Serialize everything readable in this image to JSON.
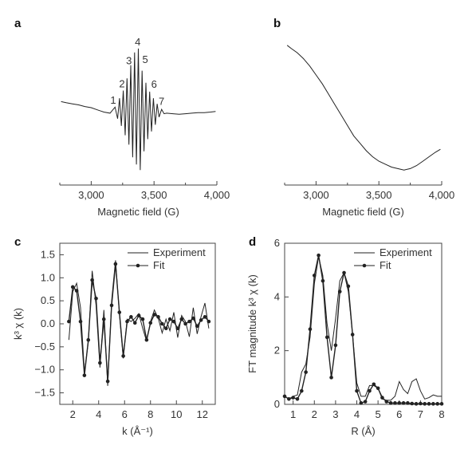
{
  "chart_data": [
    {
      "panel": "a",
      "type": "line",
      "xlabel": "Magnetic field (G)",
      "ylabel": "",
      "xlim": [
        2750,
        4000
      ],
      "xticks": [
        "3,000",
        "3,500",
        "4,000"
      ],
      "xtick_values": [
        3000,
        3500,
        4000
      ],
      "peak_labels": [
        {
          "text": "1",
          "x": 3175,
          "y": 0.12
        },
        {
          "text": "2",
          "x": 3245,
          "y": 0.42
        },
        {
          "text": "3",
          "x": 3300,
          "y": 0.84
        },
        {
          "text": "4",
          "x": 3370,
          "y": 1.18
        },
        {
          "text": "5",
          "x": 3430,
          "y": 0.86
        },
        {
          "text": "6",
          "x": 3500,
          "y": 0.41
        },
        {
          "text": "7",
          "x": 3560,
          "y": 0.1
        }
      ],
      "series": [
        {
          "style": "line",
          "x": [
            2760,
            2800,
            2850,
            2900,
            2950,
            3000,
            3050,
            3100,
            3150,
            3190,
            3210,
            3225,
            3240,
            3255,
            3270,
            3285,
            3300,
            3315,
            3330,
            3345,
            3360,
            3375,
            3390,
            3405,
            3420,
            3435,
            3450,
            3465,
            3480,
            3495,
            3510,
            3525,
            3540,
            3560,
            3580,
            3600,
            3650,
            3700,
            3750,
            3800,
            3850,
            3900,
            3950,
            3990
          ],
          "y": [
            0.16,
            0.14,
            0.12,
            0.1,
            0.07,
            0.05,
            0.01,
            -0.03,
            -0.05,
            0.06,
            -0.15,
            0.22,
            -0.28,
            0.36,
            -0.45,
            0.58,
            -0.62,
            0.82,
            -0.85,
            1.05,
            -0.98,
            1.12,
            -1.08,
            0.72,
            -0.74,
            0.5,
            -0.52,
            0.34,
            -0.38,
            0.22,
            -0.26,
            0.12,
            -0.12,
            0.02,
            -0.06,
            -0.05,
            -0.06,
            -0.07,
            -0.06,
            -0.05,
            -0.04,
            -0.04,
            -0.03,
            -0.02
          ]
        }
      ]
    },
    {
      "panel": "b",
      "type": "line",
      "xlabel": "Magnetic field (G)",
      "ylabel": "",
      "xlim": [
        2750,
        4000
      ],
      "xticks": [
        "3,000",
        "3,500",
        "4,000"
      ],
      "xtick_values": [
        3000,
        3500,
        4000
      ],
      "series": [
        {
          "style": "line",
          "x": [
            2770,
            2800,
            2850,
            2900,
            2950,
            3000,
            3050,
            3100,
            3150,
            3200,
            3250,
            3300,
            3350,
            3400,
            3450,
            3500,
            3550,
            3600,
            3650,
            3700,
            3750,
            3800,
            3850,
            3900,
            3950,
            3990
          ],
          "y": [
            0.45,
            0.43,
            0.4,
            0.36,
            0.31,
            0.25,
            0.19,
            0.12,
            0.05,
            -0.02,
            -0.09,
            -0.16,
            -0.21,
            -0.26,
            -0.3,
            -0.33,
            -0.35,
            -0.37,
            -0.38,
            -0.39,
            -0.38,
            -0.36,
            -0.33,
            -0.3,
            -0.27,
            -0.25
          ]
        }
      ]
    },
    {
      "panel": "c",
      "type": "line",
      "xlabel": "k (Å⁻¹)",
      "ylabel": "k³ χ (k)",
      "xlim": [
        1,
        13
      ],
      "ylim": [
        -1.75,
        1.75
      ],
      "xticks": [
        "2",
        "4",
        "6",
        "8",
        "10",
        "12"
      ],
      "xtick_values": [
        2,
        4,
        6,
        8,
        10,
        12
      ],
      "yticks": [
        "1.5",
        "1.0",
        "0.5",
        "0.0",
        "−0.5",
        "−1.0",
        "−1.5"
      ],
      "ytick_values": [
        1.5,
        1.0,
        0.5,
        0.0,
        -0.5,
        -1.0,
        -1.5
      ],
      "legend": [
        "Experiment",
        "Fit"
      ],
      "legend_position": "top-right",
      "series": [
        {
          "name": "Experiment",
          "style": "line",
          "x": [
            1.7,
            2.0,
            2.3,
            2.6,
            2.9,
            3.2,
            3.5,
            3.8,
            4.1,
            4.4,
            4.7,
            5.0,
            5.3,
            5.6,
            5.9,
            6.2,
            6.5,
            6.8,
            7.1,
            7.4,
            7.7,
            8.0,
            8.3,
            8.6,
            8.9,
            9.2,
            9.5,
            9.8,
            10.1,
            10.4,
            10.7,
            11.0,
            11.3,
            11.6,
            11.9,
            12.2,
            12.5
          ],
          "y": [
            -0.35,
            0.7,
            0.88,
            0.35,
            -1.05,
            -0.4,
            1.15,
            0.4,
            -0.95,
            0.3,
            -1.35,
            0.5,
            1.38,
            0.2,
            -0.75,
            0.1,
            0.05,
            0.12,
            0.22,
            -0.1,
            -0.38,
            0.05,
            0.3,
            0.12,
            -0.2,
            0.1,
            -0.15,
            0.25,
            -0.3,
            0.18,
            0.05,
            -0.28,
            0.35,
            -0.22,
            0.15,
            0.45,
            -0.1
          ]
        },
        {
          "name": "Fit",
          "style": "line-markers",
          "x": [
            1.7,
            2.0,
            2.3,
            2.6,
            2.9,
            3.2,
            3.5,
            3.8,
            4.1,
            4.4,
            4.7,
            5.0,
            5.3,
            5.6,
            5.9,
            6.2,
            6.5,
            6.8,
            7.1,
            7.4,
            7.7,
            8.0,
            8.3,
            8.6,
            8.9,
            9.2,
            9.5,
            9.8,
            10.1,
            10.4,
            10.7,
            11.0,
            11.3,
            11.6,
            11.9,
            12.2,
            12.5
          ],
          "y": [
            0.05,
            0.8,
            0.72,
            0.05,
            -1.12,
            -0.35,
            0.95,
            0.55,
            -0.85,
            0.1,
            -1.25,
            0.4,
            1.3,
            0.25,
            -0.7,
            0.05,
            0.15,
            0.02,
            0.18,
            0.1,
            -0.35,
            0.02,
            0.2,
            0.15,
            0.0,
            -0.1,
            0.1,
            0.05,
            -0.1,
            0.1,
            0.0,
            0.05,
            0.12,
            -0.05,
            0.08,
            0.15,
            0.05
          ]
        }
      ]
    },
    {
      "panel": "d",
      "type": "line",
      "xlabel": "R (Å)",
      "ylabel": "FT magnitude k³ χ (k)",
      "xlim": [
        0.6,
        8
      ],
      "ylim": [
        0,
        6
      ],
      "xticks": [
        "1",
        "2",
        "3",
        "4",
        "5",
        "6",
        "7",
        "8"
      ],
      "xtick_values": [
        1,
        2,
        3,
        4,
        5,
        6,
        7,
        8
      ],
      "yticks": [
        "0",
        "2",
        "4",
        "6"
      ],
      "ytick_values": [
        0,
        2,
        4,
        6
      ],
      "legend": [
        "Experiment",
        "Fit"
      ],
      "legend_position": "top-right",
      "series": [
        {
          "name": "Experiment",
          "style": "line",
          "x": [
            0.6,
            0.8,
            1.0,
            1.2,
            1.4,
            1.6,
            1.8,
            2.0,
            2.2,
            2.4,
            2.6,
            2.8,
            3.0,
            3.2,
            3.4,
            3.6,
            3.8,
            4.0,
            4.2,
            4.4,
            4.6,
            4.8,
            5.0,
            5.2,
            5.4,
            5.6,
            5.8,
            6.0,
            6.2,
            6.4,
            6.6,
            6.8,
            7.0,
            7.2,
            7.4,
            7.6,
            7.8,
            8.0
          ],
          "y": [
            0.3,
            0.2,
            0.3,
            0.35,
            1.2,
            1.5,
            2.5,
            4.5,
            5.5,
            4.8,
            3.0,
            2.0,
            3.2,
            4.6,
            4.9,
            4.2,
            2.6,
            0.8,
            0.3,
            0.3,
            0.7,
            0.7,
            0.6,
            0.2,
            0.15,
            0.15,
            0.3,
            0.85,
            0.55,
            0.4,
            0.85,
            0.95,
            0.5,
            0.2,
            0.25,
            0.35,
            0.3,
            0.3
          ]
        },
        {
          "name": "Fit",
          "style": "line-markers",
          "x": [
            0.6,
            0.8,
            1.0,
            1.2,
            1.4,
            1.6,
            1.8,
            2.0,
            2.2,
            2.4,
            2.6,
            2.8,
            3.0,
            3.2,
            3.4,
            3.6,
            3.8,
            4.0,
            4.2,
            4.4,
            4.6,
            4.8,
            5.0,
            5.2,
            5.4,
            5.6,
            5.8,
            6.0,
            6.2,
            6.4,
            6.6,
            6.8,
            7.0,
            7.2,
            7.4,
            7.6,
            7.8,
            8.0
          ],
          "y": [
            0.3,
            0.2,
            0.25,
            0.2,
            0.5,
            1.2,
            2.8,
            4.8,
            5.55,
            4.6,
            2.5,
            1.0,
            2.2,
            4.2,
            4.9,
            4.4,
            2.6,
            0.5,
            0.05,
            0.1,
            0.5,
            0.75,
            0.6,
            0.25,
            0.1,
            0.05,
            0.05,
            0.05,
            0.05,
            0.05,
            0.03,
            0.02,
            0.03,
            0.02,
            0.02,
            0.02,
            0.02,
            0.02
          ]
        }
      ]
    }
  ],
  "panel_labels": [
    "a",
    "b",
    "c",
    "d"
  ],
  "colors": {
    "line": "#222222",
    "axis": "#444444"
  }
}
